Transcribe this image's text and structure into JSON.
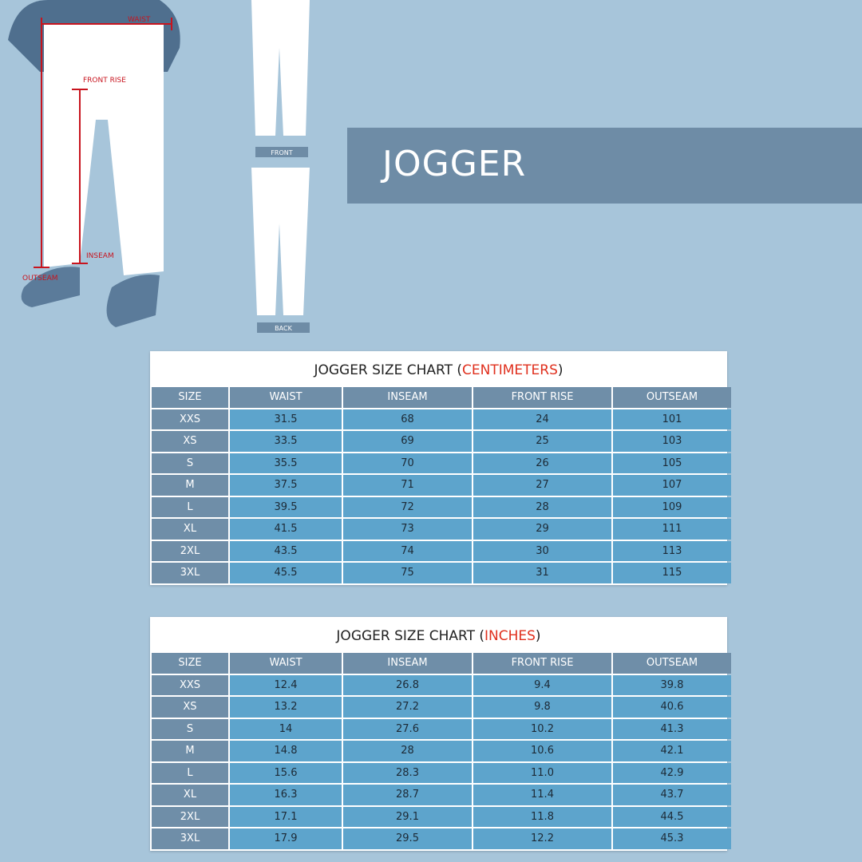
{
  "illustration": {
    "waist": "WAIST",
    "front_rise": "FRONT RISE",
    "inseam": "INSEAM",
    "outseam": "OUTSEAM",
    "front": "FRONT",
    "back": "BACK"
  },
  "banner": {
    "title": "JOGGER"
  },
  "tables": [
    {
      "title": [
        "JOGGER SIZE CHART (",
        "CENTIMETERS",
        ")"
      ],
      "headers": [
        "SIZE",
        "WAIST",
        "INSEAM",
        "FRONT RISE",
        "OUTSEAM"
      ],
      "rows": [
        [
          "XXS",
          "31.5",
          "68",
          "24",
          "101"
        ],
        [
          "XS",
          "33.5",
          "69",
          "25",
          "103"
        ],
        [
          "S",
          "35.5",
          "70",
          "26",
          "105"
        ],
        [
          "M",
          "37.5",
          "71",
          "27",
          "107"
        ],
        [
          "L",
          "39.5",
          "72",
          "28",
          "109"
        ],
        [
          "XL",
          "41.5",
          "73",
          "29",
          "111"
        ],
        [
          "2XL",
          "43.5",
          "74",
          "30",
          "113"
        ],
        [
          "3XL",
          "45.5",
          "75",
          "31",
          "115"
        ]
      ]
    },
    {
      "title": [
        "JOGGER SIZE CHART (",
        "INCHES",
        ")"
      ],
      "headers": [
        "SIZE",
        "WAIST",
        "INSEAM",
        "FRONT RISE",
        "OUTSEAM"
      ],
      "rows": [
        [
          "XXS",
          "12.4",
          "26.8",
          "9.4",
          "39.8"
        ],
        [
          "XS",
          "13.2",
          "27.2",
          "9.8",
          "40.6"
        ],
        [
          "S",
          "14",
          "27.6",
          "10.2",
          "41.3"
        ],
        [
          "M",
          "14.8",
          "28",
          "10.6",
          "42.1"
        ],
        [
          "L",
          "15.6",
          "28.3",
          "11.0",
          "42.9"
        ],
        [
          "XL",
          "16.3",
          "28.7",
          "11.4",
          "43.7"
        ],
        [
          "2XL",
          "17.1",
          "29.1",
          "11.8",
          "44.5"
        ],
        [
          "3XL",
          "17.9",
          "29.5",
          "12.2",
          "45.3"
        ]
      ]
    }
  ]
}
